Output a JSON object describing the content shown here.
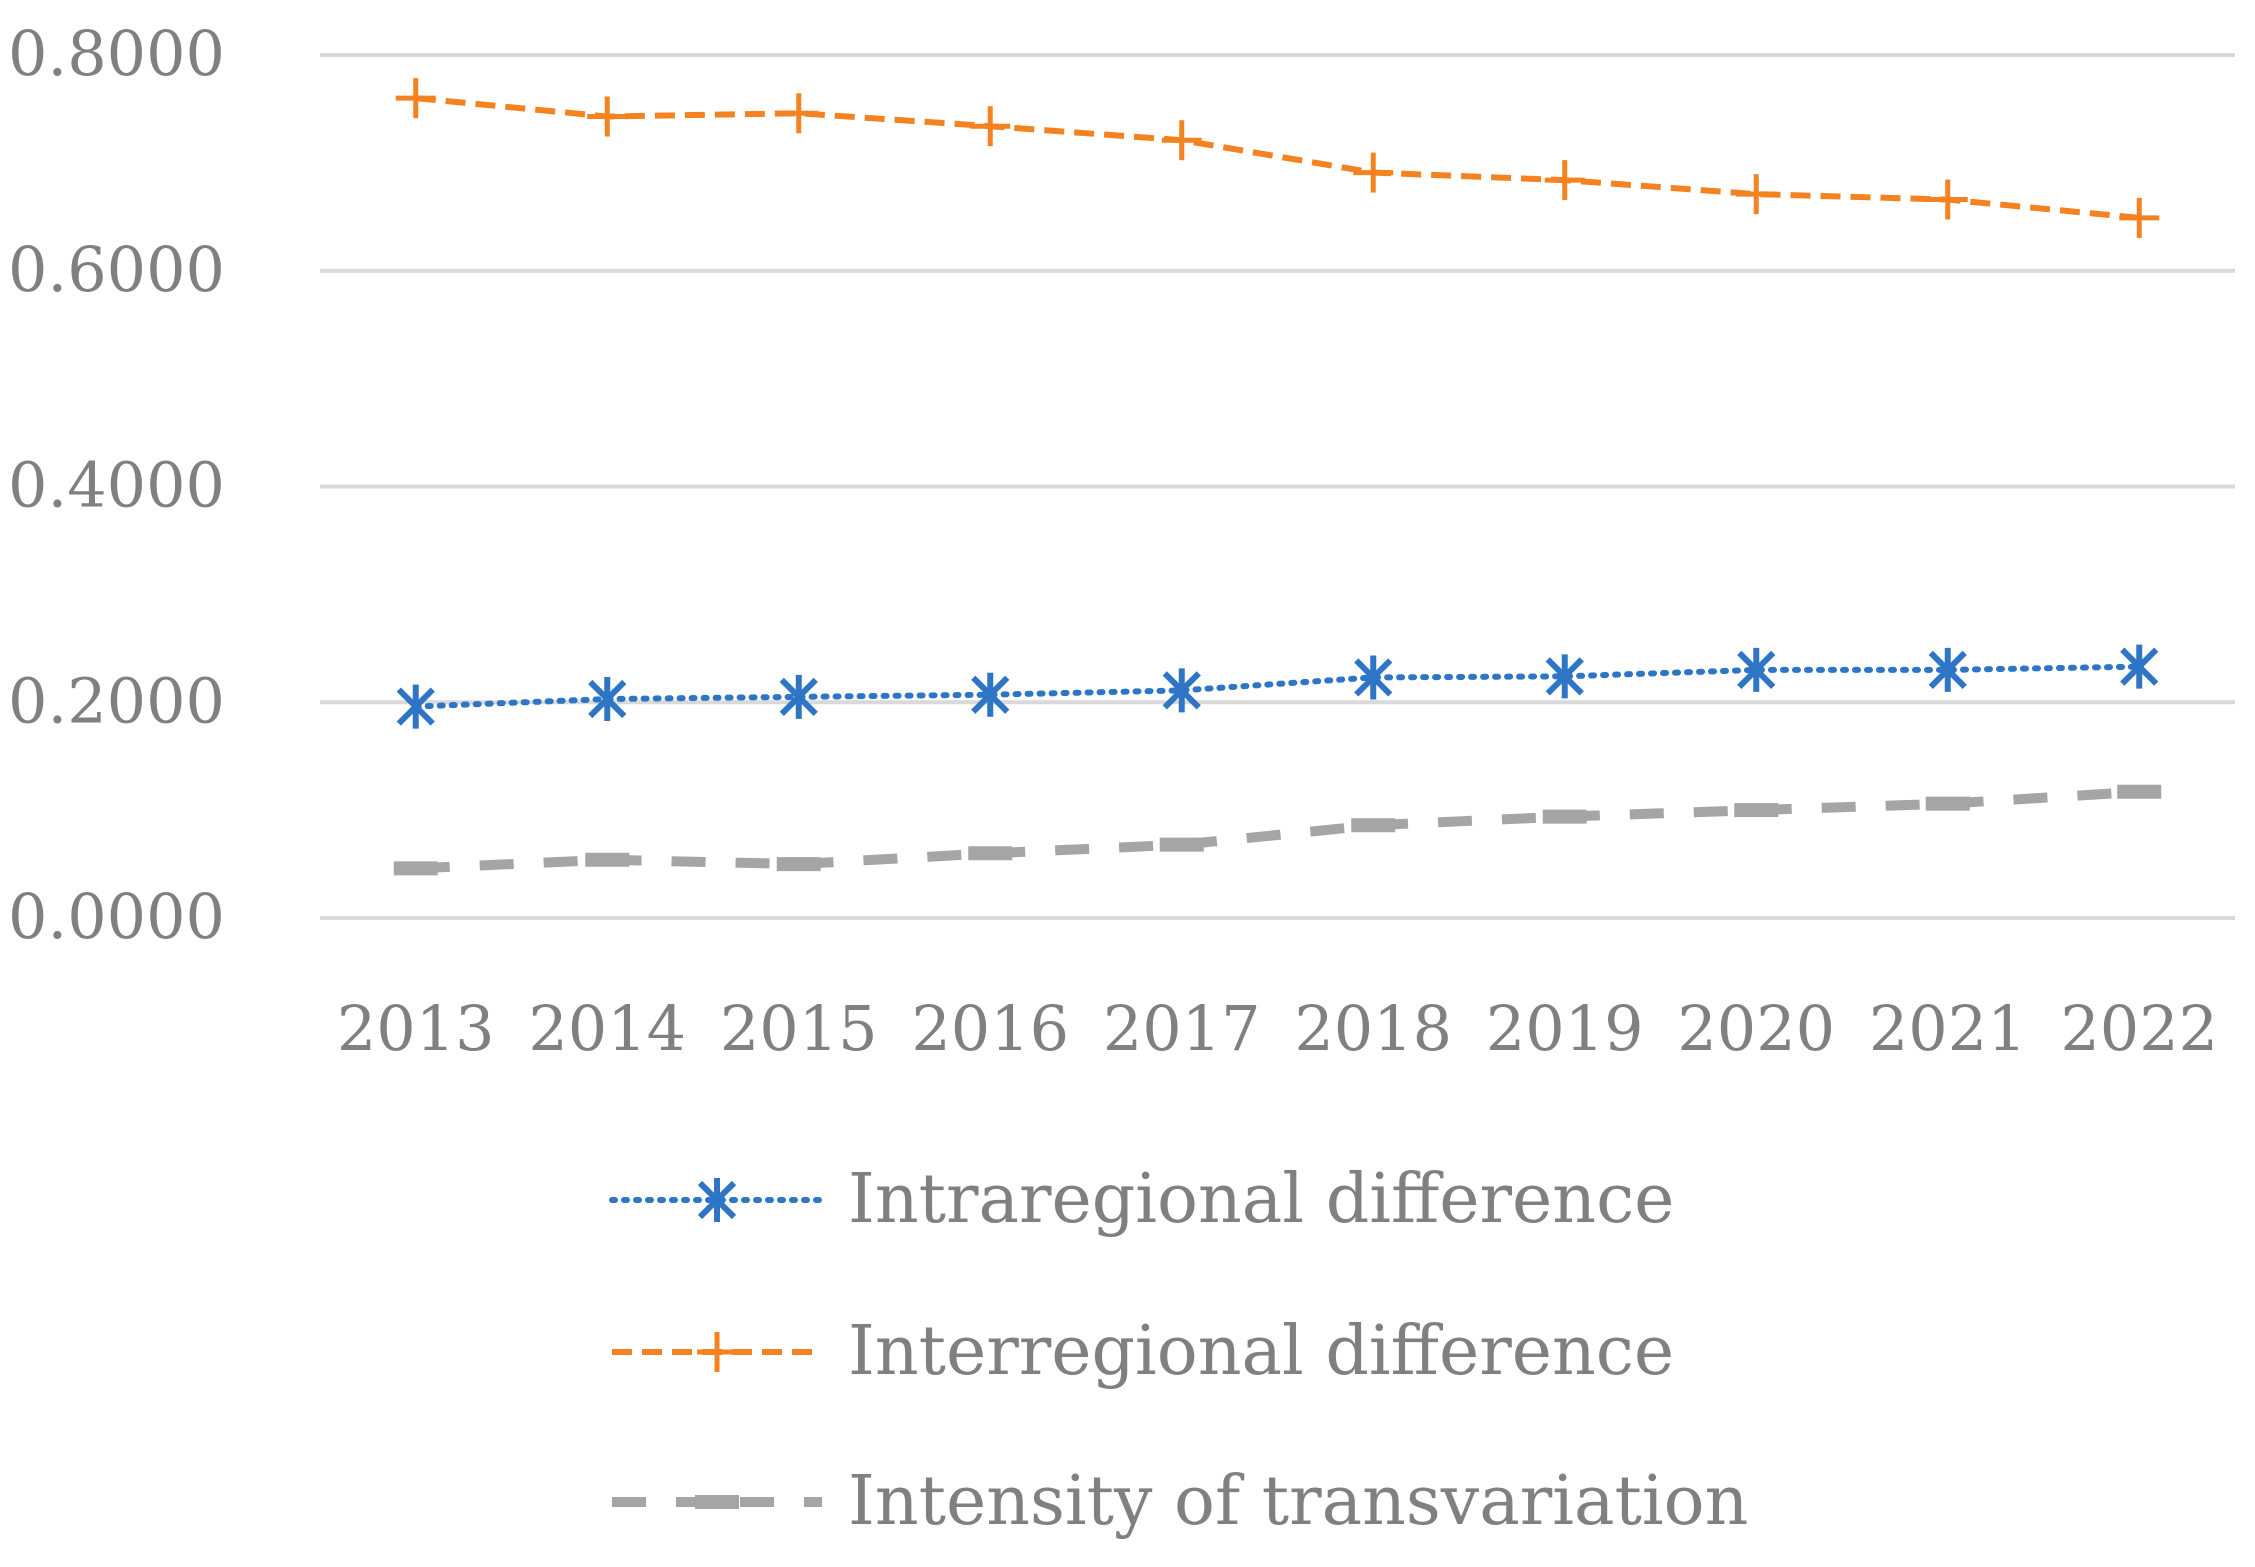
{
  "chart_data": {
    "type": "line",
    "title": "",
    "xlabel": "",
    "ylabel": "",
    "categories": [
      "2013",
      "2014",
      "2015",
      "2016",
      "2017",
      "2018",
      "2019",
      "2020",
      "2021",
      "2022"
    ],
    "ylim": [
      0,
      0.8
    ],
    "yticks": [
      "0.0000",
      "0.2000",
      "0.4000",
      "0.6000",
      "0.8000"
    ],
    "grid": true,
    "legend_position": "bottom",
    "series": [
      {
        "name": "Intraregional difference",
        "color": "#2E75C5",
        "line_style": "dotted",
        "marker": "asterisk",
        "values": [
          0.196,
          0.203,
          0.205,
          0.207,
          0.211,
          0.223,
          0.224,
          0.23,
          0.23,
          0.233
        ]
      },
      {
        "name": "Interregional difference",
        "color": "#F58220",
        "line_style": "dashed",
        "marker": "plus",
        "values": [
          0.76,
          0.743,
          0.746,
          0.734,
          0.721,
          0.691,
          0.684,
          0.671,
          0.666,
          0.649
        ]
      },
      {
        "name": "Intensity of transvariation",
        "color": "#A5A5A5",
        "line_style": "long-dash",
        "marker": "dash",
        "values": [
          0.046,
          0.054,
          0.05,
          0.06,
          0.068,
          0.086,
          0.094,
          0.1,
          0.106,
          0.117
        ]
      }
    ]
  }
}
